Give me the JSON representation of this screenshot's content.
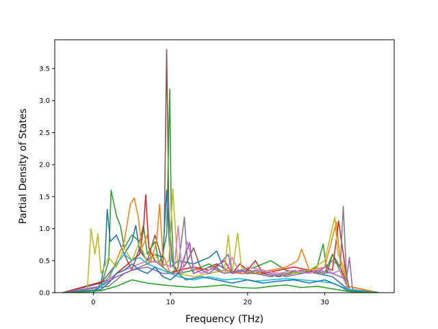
{
  "chart_data": {
    "type": "line",
    "title": "",
    "xlabel": "Frequency (THz)",
    "ylabel": "Partial Density of States",
    "xlim": [
      -5.0,
      39.0
    ],
    "ylim": [
      0.0,
      3.95
    ],
    "xticks": [
      0,
      10,
      20,
      30
    ],
    "xtick_labels": [
      "0",
      "10",
      "20",
      "30"
    ],
    "yticks": [
      0.0,
      0.5,
      1.0,
      1.5,
      2.0,
      2.5,
      3.0,
      3.5
    ],
    "ytick_labels": [
      "0.0",
      "0.5",
      "1.0",
      "1.5",
      "2.0",
      "2.5",
      "3.0",
      "3.5"
    ],
    "grid": false,
    "legend": "none",
    "palette": [
      "#1f77b4",
      "#ff7f0e",
      "#2ca02c",
      "#d62728",
      "#9467bd",
      "#8c564b",
      "#e377c2",
      "#7f7f7f",
      "#bcbd22",
      "#17becf"
    ],
    "series": [
      {
        "color": "#8c564b",
        "x": [
          -4,
          0,
          2,
          3,
          4,
          5,
          6,
          7,
          8,
          8.7,
          9.0,
          9.2,
          9.5,
          9.8,
          10.2,
          11,
          12,
          13,
          14,
          16,
          18,
          20,
          22,
          24,
          26,
          28,
          30,
          31,
          32,
          33,
          37
        ],
        "y": [
          0,
          0,
          0.3,
          0.45,
          0.6,
          0.35,
          0.7,
          0.5,
          0.9,
          0.6,
          0.4,
          1.0,
          3.8,
          1.2,
          0.5,
          0.3,
          0.45,
          0.7,
          0.35,
          0.45,
          0.3,
          0.35,
          0.3,
          0.25,
          0.3,
          0.35,
          0.3,
          0.6,
          0.4,
          0.1,
          0
        ]
      },
      {
        "color": "#2ca02c",
        "x": [
          -4,
          1,
          2,
          2.3,
          3,
          3.5,
          4,
          5,
          6,
          6.5,
          7,
          8,
          8.5,
          9,
          9.5,
          9.9,
          10.1,
          10.4,
          11,
          13,
          15,
          17,
          19,
          21,
          23,
          25,
          27,
          29,
          29.8,
          30.3,
          31,
          32.5,
          33.5,
          37
        ],
        "y": [
          0,
          0.1,
          0.5,
          1.6,
          1.2,
          1.05,
          0.7,
          0.9,
          0.8,
          1.05,
          0.6,
          0.8,
          0.45,
          0.6,
          0.9,
          3.18,
          1.3,
          0.4,
          0.3,
          0.35,
          0.45,
          0.3,
          0.35,
          0.4,
          0.5,
          0.35,
          0.3,
          0.4,
          0.76,
          0.3,
          0.6,
          0.2,
          0,
          0
        ]
      },
      {
        "color": "#1f77b4",
        "x": [
          -4,
          1,
          1.5,
          1.8,
          2.2,
          3,
          4,
          5,
          5.5,
          6,
          7,
          8,
          9,
          9.5,
          10,
          11,
          13,
          15,
          16,
          17,
          19,
          21,
          23,
          25,
          27,
          29,
          31,
          33,
          37
        ],
        "y": [
          0,
          0.15,
          0.5,
          1.3,
          0.8,
          0.9,
          0.6,
          0.8,
          1.05,
          0.65,
          0.5,
          0.6,
          0.55,
          1.6,
          0.4,
          0.5,
          0.45,
          0.55,
          0.65,
          0.35,
          0.3,
          0.3,
          0.25,
          0.3,
          0.35,
          0.3,
          0.25,
          0.05,
          0
        ]
      },
      {
        "color": "#ff7f0e",
        "x": [
          -4,
          2,
          3,
          4,
          4.8,
          5.3,
          5.8,
          6.3,
          7,
          7.5,
          8.2,
          8.6,
          9,
          10,
          11,
          13,
          15,
          17,
          19,
          21,
          23,
          25,
          26.5,
          27,
          28,
          30,
          31.5,
          32,
          33,
          37
        ],
        "y": [
          0,
          0.2,
          0.5,
          0.8,
          1.38,
          1.48,
          1.2,
          0.7,
          0.9,
          0.5,
          0.8,
          1.38,
          0.6,
          0.3,
          0.35,
          0.4,
          0.3,
          0.35,
          0.3,
          0.3,
          0.35,
          0.4,
          0.5,
          0.68,
          0.35,
          0.4,
          1.1,
          0.5,
          0.1,
          0
        ]
      },
      {
        "color": "#d62728",
        "x": [
          -4,
          2,
          4,
          5,
          6,
          6.5,
          6.8,
          7.2,
          8,
          9,
          10,
          11,
          13,
          15,
          17,
          18,
          19,
          20,
          21,
          22,
          24,
          26,
          28,
          29,
          30,
          31,
          31.8,
          32.4,
          33,
          37
        ],
        "y": [
          0,
          0.2,
          0.4,
          0.5,
          0.6,
          1.0,
          1.53,
          0.7,
          0.5,
          0.4,
          0.3,
          0.35,
          0.4,
          0.35,
          0.5,
          0.3,
          0.45,
          0.35,
          0.5,
          0.3,
          0.35,
          0.4,
          0.35,
          0.3,
          0.4,
          0.35,
          1.12,
          0.6,
          0.05,
          0
        ]
      },
      {
        "color": "#bcbd22",
        "x": [
          -4,
          -0.8,
          -0.3,
          0.2,
          0.6,
          1,
          2,
          3,
          4,
          5,
          6,
          7,
          8,
          9,
          9.8,
          10.3,
          11,
          13,
          15,
          17,
          17.5,
          18,
          18.7,
          19.2,
          20,
          22,
          24,
          26,
          28,
          30,
          31.3,
          31.7,
          32.5,
          33,
          37
        ],
        "y": [
          0,
          0,
          1.0,
          0.6,
          0.92,
          0.3,
          0.55,
          0.4,
          0.7,
          0.5,
          0.8,
          0.45,
          0.6,
          0.4,
          0.5,
          1.62,
          0.3,
          0.25,
          0.3,
          0.35,
          0.9,
          0.3,
          0.93,
          0.4,
          0.3,
          0.35,
          0.3,
          0.3,
          0.35,
          0.5,
          1.18,
          0.6,
          0.4,
          0.05,
          0
        ]
      },
      {
        "color": "#7f7f7f",
        "x": [
          -4,
          2,
          4,
          6,
          8,
          10,
          11,
          11.8,
          12.2,
          13,
          15,
          17,
          19,
          21,
          23,
          25,
          27,
          29,
          30,
          31,
          32,
          32.4,
          32.8,
          33.2,
          37
        ],
        "y": [
          0,
          0.1,
          0.3,
          0.4,
          0.5,
          0.3,
          0.4,
          1.18,
          0.5,
          0.3,
          0.4,
          0.3,
          0.35,
          0.3,
          0.25,
          0.3,
          0.35,
          0.3,
          0.4,
          0.5,
          0.4,
          1.35,
          0.3,
          0.05,
          0
        ]
      },
      {
        "color": "#e377c2",
        "x": [
          -4,
          1,
          3,
          5,
          7,
          9,
          10.5,
          11,
          11.5,
          12.2,
          13,
          14,
          15,
          16,
          17,
          18,
          19,
          20,
          22,
          24,
          26,
          28,
          30,
          31,
          32,
          33,
          37
        ],
        "y": [
          0,
          0.1,
          0.3,
          0.4,
          0.5,
          0.45,
          0.4,
          1.04,
          0.3,
          0.8,
          0.4,
          0.3,
          0.35,
          0.4,
          0.3,
          0.55,
          0.3,
          0.4,
          0.35,
          0.3,
          0.35,
          0.3,
          0.4,
          0.3,
          0.35,
          0.05,
          0
        ]
      },
      {
        "color": "#9467bd",
        "x": [
          -4,
          1,
          3,
          5,
          7,
          9,
          11,
          12.5,
          13,
          14,
          15,
          16,
          17.5,
          18,
          19,
          20,
          21,
          23,
          25,
          27,
          29,
          31,
          32,
          32.8,
          33.2,
          33.6,
          37
        ],
        "y": [
          0,
          0.1,
          0.25,
          0.35,
          0.4,
          0.3,
          0.3,
          0.78,
          0.3,
          0.35,
          0.3,
          0.4,
          0.6,
          0.3,
          0.35,
          0.3,
          0.35,
          0.3,
          0.25,
          0.3,
          0.35,
          0.3,
          0.25,
          0.2,
          0.55,
          0.05,
          0
        ]
      },
      {
        "color": "#17becf",
        "x": [
          -4,
          0,
          1,
          2,
          3,
          4,
          5,
          6,
          7,
          8,
          9,
          10,
          11,
          13,
          15,
          17,
          19,
          21,
          23,
          25,
          27,
          29,
          31,
          33,
          37
        ],
        "y": [
          0,
          0,
          0.1,
          0.25,
          0.45,
          0.6,
          0.5,
          0.55,
          0.45,
          0.4,
          0.35,
          0.3,
          0.25,
          0.2,
          0.25,
          0.2,
          0.22,
          0.18,
          0.2,
          0.22,
          0.2,
          0.18,
          0.15,
          0.05,
          0
        ]
      },
      {
        "color": "#1f77b4",
        "x": [
          -4,
          1,
          2,
          3,
          4,
          5,
          6,
          7,
          8,
          9,
          10,
          11,
          12,
          14,
          16,
          18,
          20,
          22,
          24,
          26,
          28,
          30,
          32,
          33,
          37
        ],
        "y": [
          0,
          0.05,
          0.15,
          0.3,
          0.35,
          0.45,
          0.35,
          0.3,
          0.4,
          0.25,
          0.2,
          0.3,
          0.2,
          0.25,
          0.2,
          0.15,
          0.2,
          0.15,
          0.18,
          0.2,
          0.15,
          0.2,
          0.1,
          0.03,
          0
        ]
      },
      {
        "color": "#2ca02c",
        "x": [
          -4,
          1,
          3,
          5,
          7,
          9,
          11,
          13,
          15,
          17,
          19,
          21,
          23,
          25,
          27,
          29,
          31,
          33,
          37
        ],
        "y": [
          0,
          0.03,
          0.1,
          0.2,
          0.15,
          0.12,
          0.1,
          0.08,
          0.1,
          0.12,
          0.08,
          0.07,
          0.1,
          0.12,
          0.08,
          0.1,
          0.06,
          0.02,
          0
        ]
      }
    ]
  }
}
